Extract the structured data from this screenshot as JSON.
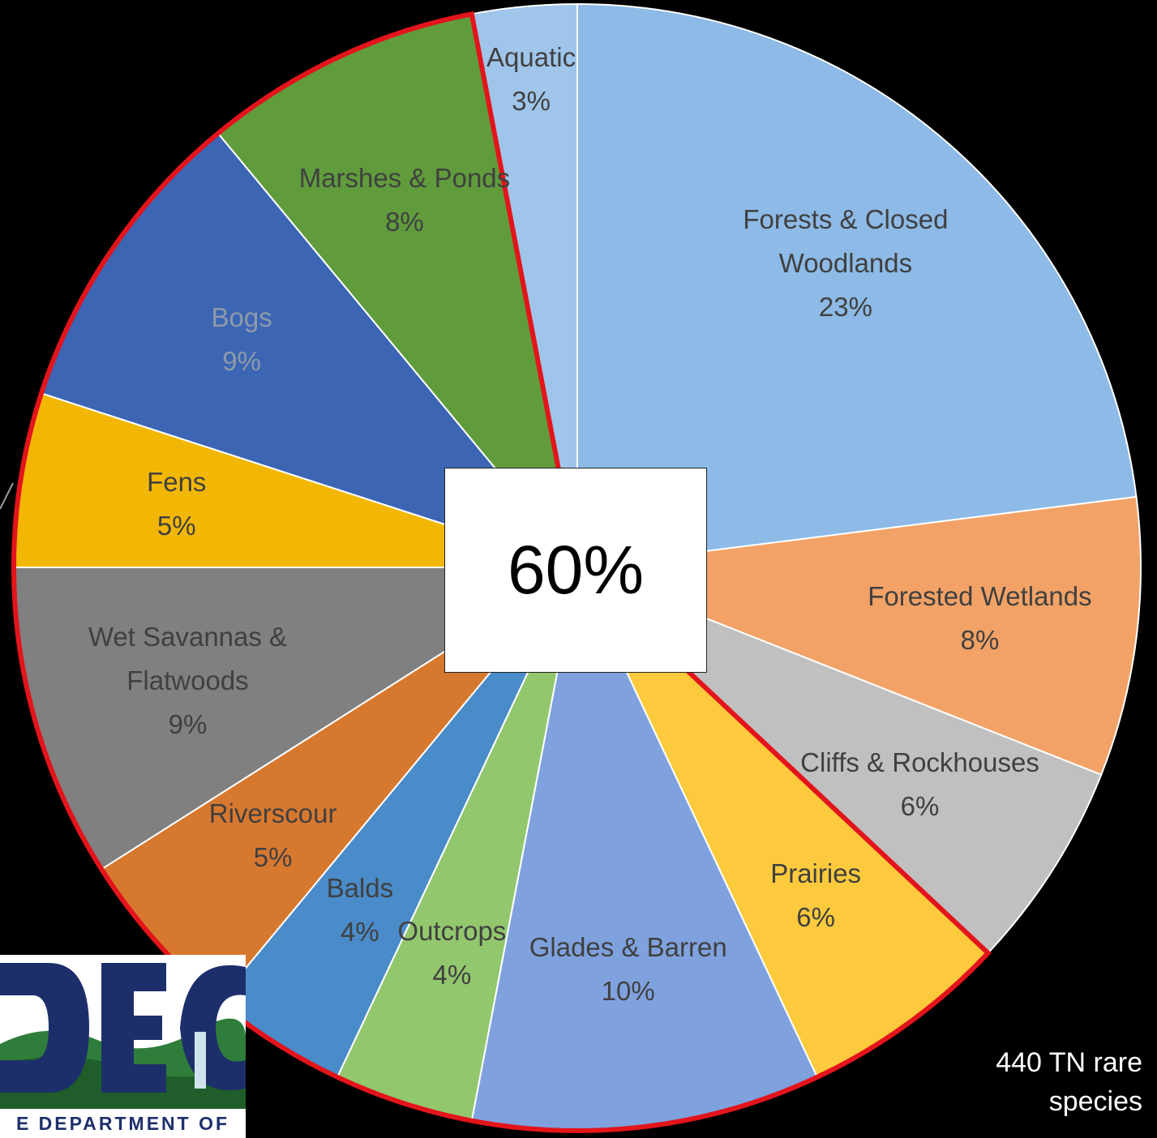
{
  "chart_data": {
    "type": "pie",
    "categories": [
      "Forests & Closed Woodlands",
      "Forested Wetlands",
      "Cliffs & Rockhouses",
      "Prairies",
      "Glades & Barren",
      "Outcrops",
      "Balds",
      "Riverscour",
      "Wet Savannas & Flatwoods",
      "Fens",
      "Bogs",
      "Marshes & Ponds",
      "Aquatic"
    ],
    "values": [
      23,
      8,
      6,
      6,
      10,
      4,
      4,
      5,
      9,
      5,
      9,
      8,
      3
    ],
    "value_labels": [
      "23%",
      "8%",
      "6%",
      "6%",
      "10%",
      "4%",
      "4%",
      "5%",
      "9%",
      "5%",
      "9%",
      "8%",
      "3%"
    ],
    "colors": [
      "#8dbae6",
      "#f2a266",
      "#c0c0c0",
      "#fcca3c",
      "#7fa2de",
      "#92c76e",
      "#4a8bc9",
      "#d7782f",
      "#808080",
      "#f2b705",
      "#3c65b4",
      "#609c3c",
      "#9fc5ea"
    ],
    "highlight": {
      "color": "#e3141b",
      "from": 3,
      "to": 11
    },
    "center_label": "60%",
    "note": [
      "440 TN rare",
      "species"
    ],
    "logo_caption": "E DEPARTMENT OF"
  }
}
